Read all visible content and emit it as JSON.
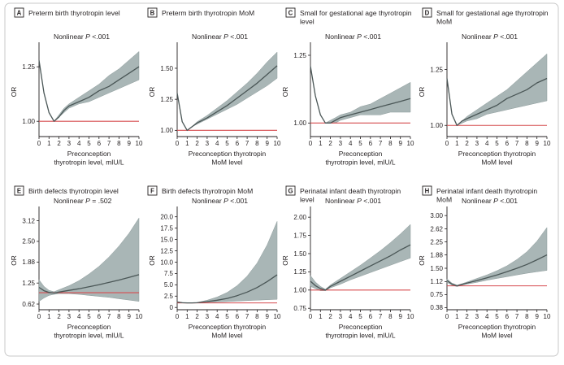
{
  "colors": {
    "band": "#a9b6b6",
    "band_edge": "#8e9c9c",
    "line": "#4a5656",
    "reference": "#d64b4f",
    "axis": "#231f20"
  },
  "chart_data": [
    {
      "type": "line",
      "letter": "A",
      "title_lines": [
        "Preterm birth thyrotropin level"
      ],
      "annotation_prefix": "Nonlinear ",
      "annotation_p": "P",
      "annotation_value": " <.001",
      "xlabel_lines": [
        "Preconception",
        "thyrotropin level, mIU/L"
      ],
      "ylabel": "OR",
      "x_ticks": [
        0,
        1,
        2,
        3,
        4,
        5,
        6,
        7,
        8,
        9,
        10
      ],
      "y_ticks": [
        1.0,
        1.25
      ],
      "y_tick_labels": [
        "1.00",
        "1.25"
      ],
      "xlim": [
        0,
        10
      ],
      "ylim": [
        0.93,
        1.34
      ],
      "series": [
        {
          "x": [
            0,
            0.5,
            1,
            1.5,
            2,
            2.5,
            3,
            4,
            5,
            6,
            7,
            8,
            9,
            10
          ],
          "y": [
            1.28,
            1.13,
            1.04,
            1.0,
            1.02,
            1.05,
            1.07,
            1.09,
            1.11,
            1.14,
            1.16,
            1.19,
            1.22,
            1.25
          ],
          "lower": [
            1.28,
            1.13,
            1.04,
            1.0,
            1.02,
            1.04,
            1.06,
            1.08,
            1.09,
            1.11,
            1.13,
            1.15,
            1.17,
            1.19
          ],
          "upper": [
            1.28,
            1.13,
            1.04,
            1.0,
            1.03,
            1.06,
            1.08,
            1.11,
            1.14,
            1.17,
            1.21,
            1.24,
            1.28,
            1.32
          ]
        }
      ]
    },
    {
      "type": "line",
      "letter": "B",
      "title_lines": [
        "Preterm birth thyrotropin MoM"
      ],
      "annotation_prefix": "Nonlinear ",
      "annotation_p": "P",
      "annotation_value": " <.001",
      "xlabel_lines": [
        "Preconception thyrotropin",
        "MoM level"
      ],
      "ylabel": "OR",
      "x_ticks": [
        0,
        1,
        2,
        3,
        4,
        5,
        6,
        7,
        8,
        9,
        10
      ],
      "y_ticks": [
        1.0,
        1.25,
        1.5
      ],
      "y_tick_labels": [
        "1.00",
        "1.25",
        "1.50"
      ],
      "xlim": [
        0,
        10
      ],
      "ylim": [
        0.95,
        1.67
      ],
      "series": [
        {
          "x": [
            0,
            0.5,
            1,
            1.5,
            2,
            3,
            4,
            5,
            6,
            7,
            8,
            9,
            10
          ],
          "y": [
            1.3,
            1.07,
            1.0,
            1.03,
            1.06,
            1.1,
            1.15,
            1.2,
            1.26,
            1.32,
            1.38,
            1.45,
            1.52
          ],
          "lower": [
            1.3,
            1.07,
            1.0,
            1.03,
            1.05,
            1.09,
            1.13,
            1.17,
            1.21,
            1.26,
            1.31,
            1.36,
            1.42
          ],
          "upper": [
            1.3,
            1.07,
            1.0,
            1.03,
            1.07,
            1.12,
            1.18,
            1.24,
            1.31,
            1.38,
            1.46,
            1.55,
            1.63
          ]
        }
      ]
    },
    {
      "type": "line",
      "letter": "C",
      "title_lines": [
        "Small for gestational age thyrotropin",
        "level"
      ],
      "annotation_prefix": "Nonlinear ",
      "annotation_p": "P",
      "annotation_value": " <.001",
      "xlabel_lines": [
        "Preconception",
        "thyrotropin level, mIU/L"
      ],
      "ylabel": "OR",
      "x_ticks": [
        0,
        1,
        2,
        3,
        4,
        5,
        6,
        7,
        8,
        9,
        10
      ],
      "y_ticks": [
        1.0,
        1.25
      ],
      "y_tick_labels": [
        "1.00",
        "1.25"
      ],
      "xlim": [
        0,
        10
      ],
      "ylim": [
        0.95,
        1.28
      ],
      "series": [
        {
          "x": [
            0,
            0.5,
            1,
            1.5,
            2,
            2.5,
            3,
            4,
            5,
            6,
            7,
            8,
            9,
            10
          ],
          "y": [
            1.21,
            1.1,
            1.03,
            1.0,
            1.0,
            1.01,
            1.02,
            1.03,
            1.04,
            1.05,
            1.06,
            1.07,
            1.08,
            1.09
          ],
          "lower": [
            1.21,
            1.1,
            1.03,
            1.0,
            1.0,
            1.0,
            1.01,
            1.02,
            1.03,
            1.03,
            1.03,
            1.04,
            1.04,
            1.04
          ],
          "upper": [
            1.21,
            1.1,
            1.03,
            1.0,
            1.01,
            1.02,
            1.03,
            1.04,
            1.06,
            1.07,
            1.09,
            1.11,
            1.13,
            1.15
          ]
        }
      ]
    },
    {
      "type": "line",
      "letter": "D",
      "title_lines": [
        "Small for gestational age thyrotropin",
        "MoM"
      ],
      "annotation_prefix": "Nonlinear ",
      "annotation_p": "P",
      "annotation_value": " <.001",
      "xlabel_lines": [
        "Preconception thyrotropin",
        "MoM level"
      ],
      "ylabel": "OR",
      "x_ticks": [
        0,
        1,
        2,
        3,
        4,
        5,
        6,
        7,
        8,
        9,
        10
      ],
      "y_ticks": [
        1.0,
        1.25
      ],
      "y_tick_labels": [
        "1.00",
        "1.25"
      ],
      "xlim": [
        0,
        10
      ],
      "ylim": [
        0.95,
        1.35
      ],
      "series": [
        {
          "x": [
            0,
            0.5,
            1,
            1.5,
            2,
            3,
            4,
            5,
            6,
            7,
            8,
            9,
            10
          ],
          "y": [
            1.21,
            1.05,
            1.0,
            1.02,
            1.03,
            1.05,
            1.07,
            1.09,
            1.12,
            1.14,
            1.16,
            1.19,
            1.21
          ],
          "lower": [
            1.21,
            1.05,
            1.0,
            1.01,
            1.02,
            1.03,
            1.05,
            1.06,
            1.07,
            1.08,
            1.09,
            1.1,
            1.11
          ],
          "upper": [
            1.21,
            1.05,
            1.0,
            1.02,
            1.04,
            1.07,
            1.1,
            1.13,
            1.16,
            1.2,
            1.24,
            1.28,
            1.32
          ]
        }
      ]
    },
    {
      "type": "line",
      "letter": "E",
      "title_lines": [
        "Birth defects thyrotropin level"
      ],
      "annotation_prefix": "Nonlinear ",
      "annotation_p": "P",
      "annotation_value": " = .502",
      "xlabel_lines": [
        "Preconception",
        "thyrotropin level, mIU/L"
      ],
      "ylabel": "OR",
      "x_ticks": [
        0,
        1,
        2,
        3,
        4,
        5,
        6,
        7,
        8,
        9,
        10
      ],
      "y_ticks": [
        0.62,
        1.25,
        1.88,
        2.5,
        3.12
      ],
      "y_tick_labels": [
        "0.62",
        "1.25",
        "1.88",
        "2.50",
        "3.12"
      ],
      "xlim": [
        0,
        10
      ],
      "ylim": [
        0.45,
        3.4
      ],
      "reference_y": 0.96,
      "series": [
        {
          "x": [
            0,
            0.5,
            1,
            1.5,
            2,
            3,
            4,
            5,
            6,
            7,
            8,
            9,
            10
          ],
          "y": [
            1.12,
            1.02,
            0.97,
            0.95,
            0.98,
            1.03,
            1.08,
            1.14,
            1.2,
            1.27,
            1.34,
            1.42,
            1.5
          ],
          "lower": [
            0.7,
            0.8,
            0.88,
            0.91,
            0.93,
            0.93,
            0.91,
            0.88,
            0.85,
            0.82,
            0.78,
            0.74,
            0.7
          ],
          "upper": [
            1.35,
            1.15,
            1.03,
            0.99,
            1.05,
            1.17,
            1.32,
            1.52,
            1.75,
            2.03,
            2.36,
            2.74,
            3.2
          ]
        }
      ]
    },
    {
      "type": "line",
      "letter": "F",
      "title_lines": [
        "Birth defects thyrotropin MoM"
      ],
      "annotation_prefix": "Nonlinear ",
      "annotation_p": "P",
      "annotation_value": " <.001",
      "xlabel_lines": [
        "Preconception thyrotropin",
        "MoM level"
      ],
      "ylabel": "OR",
      "x_ticks": [
        0,
        1,
        2,
        3,
        4,
        5,
        6,
        7,
        8,
        9,
        10
      ],
      "y_ticks": [
        0,
        2.5,
        5.0,
        7.5,
        10.0,
        12.5,
        15.0,
        17.5,
        20.0
      ],
      "y_tick_labels": [
        "0",
        "2.5",
        "5.0",
        "7.5",
        "10.0",
        "12.5",
        "15.0",
        "17.5",
        "20.0"
      ],
      "xlim": [
        0,
        10
      ],
      "ylim": [
        -0.5,
        21.2
      ],
      "series": [
        {
          "x": [
            0,
            0.5,
            1,
            1.5,
            2,
            3,
            4,
            5,
            6,
            7,
            8,
            9,
            10
          ],
          "y": [
            1.2,
            1.05,
            1.0,
            1.0,
            1.05,
            1.3,
            1.6,
            2.0,
            2.6,
            3.4,
            4.4,
            5.7,
            7.2
          ],
          "lower": [
            1.1,
            1.0,
            0.97,
            0.97,
            1.0,
            1.1,
            1.2,
            1.3,
            1.4,
            1.5,
            1.6,
            1.7,
            1.8
          ],
          "upper": [
            1.3,
            1.1,
            1.03,
            1.03,
            1.1,
            1.6,
            2.3,
            3.3,
            4.8,
            6.9,
            9.8,
            13.8,
            19.0
          ]
        }
      ]
    },
    {
      "type": "line",
      "letter": "G",
      "title_lines": [
        "Perinatal infant death thyrotropin",
        "level"
      ],
      "annotation_prefix": "Nonlinear ",
      "annotation_p": "P",
      "annotation_value": " <.001",
      "xlabel_lines": [
        "Preconception",
        "thyrotropin level, mIU/L"
      ],
      "ylabel": "OR",
      "x_ticks": [
        0,
        1,
        2,
        3,
        4,
        5,
        6,
        7,
        8,
        9,
        10
      ],
      "y_ticks": [
        0.75,
        1.0,
        1.25,
        1.5,
        1.75,
        2.0
      ],
      "y_tick_labels": [
        "0.75",
        "1.00",
        "1.25",
        "1.50",
        "1.75",
        "2.00"
      ],
      "xlim": [
        0,
        10
      ],
      "ylim": [
        0.73,
        2.08
      ],
      "series": [
        {
          "x": [
            0,
            0.5,
            1,
            1.5,
            2,
            3,
            4,
            5,
            6,
            7,
            8,
            9,
            10
          ],
          "y": [
            1.12,
            1.06,
            1.02,
            1.0,
            1.05,
            1.12,
            1.19,
            1.26,
            1.33,
            1.4,
            1.47,
            1.55,
            1.62
          ],
          "lower": [
            1.05,
            1.02,
            0.99,
            0.99,
            1.03,
            1.08,
            1.14,
            1.19,
            1.24,
            1.29,
            1.34,
            1.39,
            1.44
          ],
          "upper": [
            1.2,
            1.11,
            1.05,
            1.01,
            1.07,
            1.16,
            1.25,
            1.34,
            1.44,
            1.54,
            1.65,
            1.77,
            1.9
          ]
        }
      ]
    },
    {
      "type": "line",
      "letter": "H",
      "title_lines": [
        "Perinatal infant death thyrotropin",
        "MoM"
      ],
      "annotation_prefix": "Nonlinear ",
      "annotation_p": "P",
      "annotation_value": " <.001",
      "xlabel_lines": [
        "Preconception thyrotropin",
        "MoM level"
      ],
      "ylabel": "OR",
      "x_ticks": [
        0,
        1,
        2,
        3,
        4,
        5,
        6,
        7,
        8,
        9,
        10
      ],
      "y_ticks": [
        0.38,
        0.75,
        1.12,
        1.5,
        1.88,
        2.25,
        2.62,
        3.0
      ],
      "y_tick_labels": [
        "0.38",
        "0.75",
        "1.12",
        "1.50",
        "1.88",
        "2.25",
        "2.62",
        "3.00"
      ],
      "xlim": [
        0,
        10
      ],
      "ylim": [
        0.32,
        3.12
      ],
      "series": [
        {
          "x": [
            0,
            0.5,
            1,
            1.5,
            2,
            3,
            4,
            5,
            6,
            7,
            8,
            9,
            10
          ],
          "y": [
            1.15,
            1.05,
            1.0,
            1.04,
            1.08,
            1.15,
            1.23,
            1.31,
            1.4,
            1.5,
            1.61,
            1.74,
            1.88
          ],
          "lower": [
            1.1,
            1.02,
            0.98,
            1.02,
            1.05,
            1.1,
            1.16,
            1.21,
            1.26,
            1.31,
            1.36,
            1.4,
            1.44
          ],
          "upper": [
            1.2,
            1.08,
            1.02,
            1.06,
            1.11,
            1.21,
            1.31,
            1.43,
            1.57,
            1.75,
            1.97,
            2.27,
            2.66
          ]
        }
      ]
    }
  ]
}
